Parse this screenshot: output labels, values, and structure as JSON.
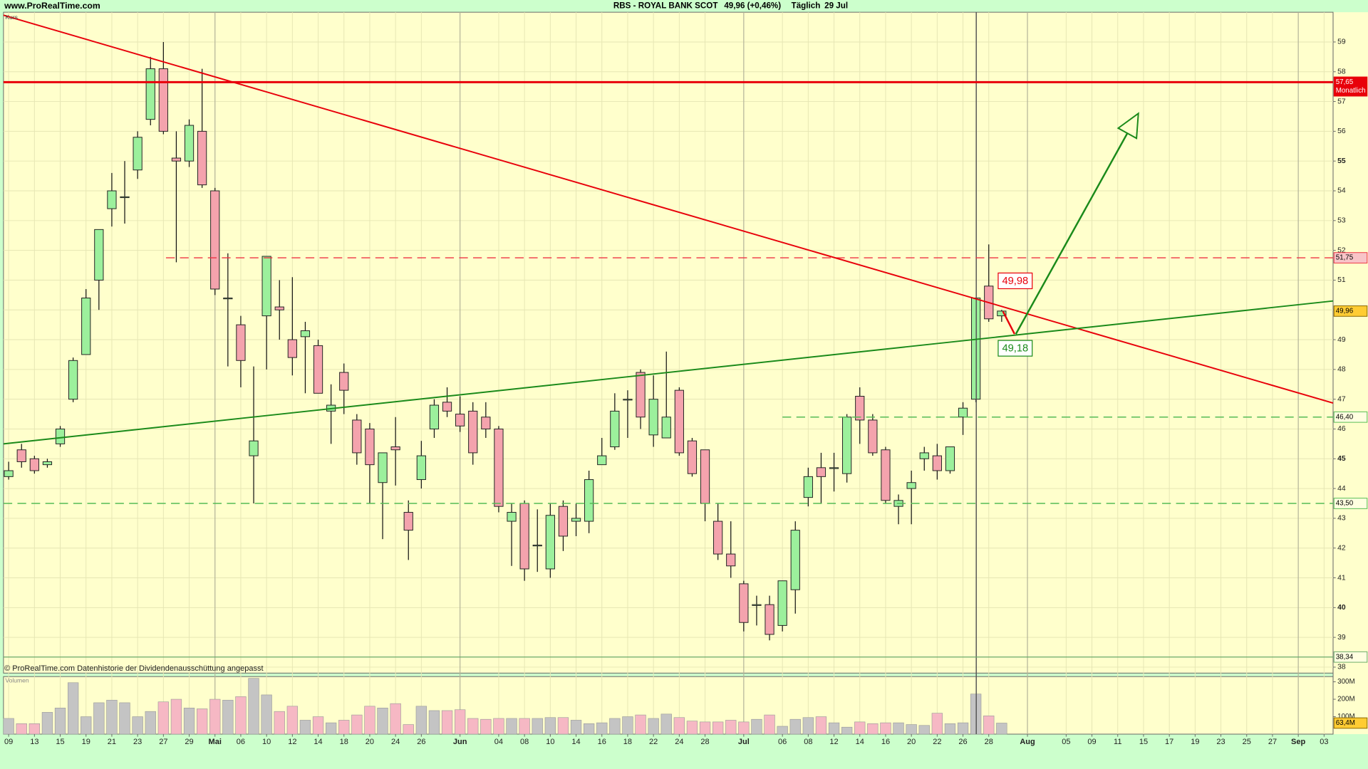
{
  "header": {
    "site": "www.ProRealTime.com",
    "title": "RBS - ROYAL BANK SCOT",
    "quote": "49,96 (+0,46%)",
    "period": "Täglich",
    "date": "29 Jul"
  },
  "chart_data": [
    {
      "type": "candlestick",
      "label": "Kurs",
      "footnote": "© ProRealTime.com  Datenhistorie der Dividendenausschüttung angepasst",
      "open": [
        44.4,
        45.3,
        45.0,
        44.8,
        45.5,
        47.0,
        48.5,
        51.0,
        53.4,
        53.8,
        54.7,
        56.4,
        58.1,
        55.1,
        55.0,
        56.0,
        54.0,
        50.4,
        49.5,
        45.1,
        49.8,
        50.1,
        49.0,
        49.1,
        48.8,
        46.6,
        47.9,
        46.3,
        46.0,
        44.2,
        45.4,
        43.2,
        44.3,
        46.0,
        46.9,
        46.5,
        46.6,
        46.4,
        46.0,
        42.9,
        43.5,
        42.1,
        41.3,
        43.4,
        42.9,
        42.9,
        44.8,
        45.4,
        47.0,
        47.9,
        45.8,
        45.7,
        47.3,
        45.6,
        45.3,
        42.9,
        41.8,
        40.8,
        40.1,
        40.1,
        39.4,
        40.6,
        43.7,
        44.7,
        44.7,
        44.5,
        47.1,
        46.3,
        45.3,
        43.4,
        44.0,
        45.0,
        45.1,
        44.6,
        46.4,
        47.0,
        50.8,
        49.8
      ],
      "high": [
        44.9,
        45.5,
        45.1,
        45.0,
        46.1,
        48.4,
        50.7,
        52.7,
        54.6,
        55.0,
        56.0,
        58.5,
        59.0,
        56.0,
        56.4,
        58.1,
        54.1,
        51.9,
        49.8,
        48.1,
        51.8,
        51.0,
        51.1,
        49.6,
        49.0,
        47.5,
        48.2,
        46.5,
        46.2,
        45.2,
        46.4,
        43.6,
        45.6,
        47.0,
        47.4,
        47.1,
        46.9,
        46.9,
        46.1,
        43.5,
        43.6,
        43.3,
        43.5,
        43.6,
        43.5,
        44.6,
        45.7,
        47.2,
        47.3,
        48.0,
        47.8,
        48.6,
        47.4,
        45.7,
        45.3,
        43.5,
        42.9,
        40.9,
        40.4,
        40.4,
        40.9,
        42.9,
        44.7,
        45.2,
        45.2,
        46.5,
        47.4,
        46.5,
        45.4,
        43.8,
        44.6,
        45.4,
        45.5,
        45.4,
        46.9,
        50.4,
        52.2,
        50.0
      ],
      "low": [
        44.3,
        44.7,
        44.5,
        44.7,
        45.4,
        46.9,
        48.5,
        50.0,
        52.8,
        52.9,
        54.4,
        56.2,
        55.9,
        51.6,
        54.8,
        54.1,
        50.5,
        48.1,
        47.4,
        43.5,
        48.0,
        49.0,
        47.8,
        47.2,
        47.2,
        45.5,
        46.5,
        44.8,
        43.5,
        42.3,
        44.1,
        41.6,
        44.0,
        45.7,
        46.4,
        45.9,
        44.8,
        45.7,
        43.2,
        41.4,
        40.9,
        41.2,
        41.0,
        41.9,
        42.4,
        42.5,
        44.8,
        45.3,
        45.7,
        46.0,
        45.4,
        45.7,
        45.1,
        44.4,
        42.9,
        41.6,
        41.0,
        39.2,
        39.4,
        38.9,
        39.2,
        39.8,
        43.4,
        43.5,
        43.9,
        44.2,
        45.5,
        45.1,
        43.5,
        42.8,
        42.8,
        44.6,
        44.3,
        44.5,
        45.8,
        46.9,
        49.6,
        49.6
      ],
      "close": [
        44.6,
        44.9,
        44.6,
        44.9,
        46.0,
        48.3,
        50.4,
        52.7,
        54.0,
        53.8,
        55.8,
        58.1,
        56.0,
        55.0,
        56.2,
        54.2,
        50.7,
        50.4,
        48.3,
        45.6,
        51.8,
        50.0,
        48.4,
        49.3,
        47.2,
        46.8,
        47.3,
        45.2,
        44.8,
        45.2,
        45.3,
        42.6,
        45.1,
        46.8,
        46.6,
        46.1,
        45.2,
        46.0,
        43.4,
        43.2,
        41.3,
        42.1,
        43.1,
        42.4,
        43.0,
        44.3,
        45.1,
        46.6,
        47.0,
        46.4,
        47.0,
        46.4,
        45.2,
        44.5,
        43.5,
        41.8,
        41.4,
        39.5,
        40.1,
        39.1,
        40.9,
        42.6,
        44.4,
        44.4,
        44.7,
        46.4,
        46.3,
        45.2,
        43.6,
        43.6,
        44.2,
        45.2,
        44.6,
        45.4,
        46.7,
        50.4,
        49.7,
        49.96
      ],
      "up_color": "#9cf09c",
      "down_color": "#f4a3ad",
      "ylim": [
        37.8,
        60
      ],
      "yticks": [
        38,
        39,
        40,
        41,
        42,
        43,
        44,
        45,
        46,
        47,
        48,
        49,
        50,
        51,
        52,
        53,
        54,
        55,
        56,
        57,
        58,
        59
      ],
      "grid": true,
      "last_price": {
        "value": 49.96,
        "label": "49,96",
        "box": "#ffcc33"
      },
      "levels": [
        {
          "value": 57.65,
          "label": "57,65",
          "note": "Monatlich",
          "color": "#e8000a",
          "style": "solid",
          "width": 2.5,
          "box": "#e8000a",
          "text_color": "#ffffff"
        },
        {
          "value": 51.75,
          "label": "51,75",
          "color": "#ee3344",
          "style": "dashed",
          "width": 1.2,
          "start": 12.2,
          "box": "#f8c4c8",
          "text_color": "#000000"
        },
        {
          "value": 46.4,
          "label": "46,40",
          "color": "#55bb55",
          "style": "dashed",
          "width": 1.2,
          "start": 60,
          "box": "#ffffe0",
          "text_color": "#000000"
        },
        {
          "value": 43.5,
          "label": "43,50",
          "color": "#55bb55",
          "style": "dashed",
          "width": 1.2,
          "box": "#ffffe0",
          "text_color": "#000000"
        },
        {
          "value": 38.34,
          "label": "38,34",
          "color": "#6aaa6a",
          "style": "solid",
          "width": 1,
          "box": "#ffffe0",
          "text_color": "#000000"
        }
      ],
      "trendlines": [
        {
          "color": "#e8000a",
          "points": [
            [
              -0.4,
              59.9
            ],
            [
              102.7,
              46.87
            ]
          ]
        },
        {
          "color": "#1a8a1a",
          "points": [
            [
              -0.4,
              45.5
            ],
            [
              102.7,
              50.3
            ]
          ]
        }
      ],
      "arrows": [
        {
          "color": "#1a8a1a",
          "points": [
            [
              78.1,
              49.19
            ],
            [
              87.6,
              56.6
            ]
          ],
          "head": "open"
        },
        {
          "color": "#e8000a",
          "points": [
            [
              77.1,
              49.95
            ],
            [
              78.0,
              49.19
            ]
          ],
          "head": "none"
        }
      ],
      "annotations": [
        {
          "label": "49,98",
          "value": 49.98,
          "x": 77,
          "side": "above",
          "color": "#e8000a"
        },
        {
          "label": "49,18",
          "value": 49.18,
          "x": 77,
          "side": "below",
          "color": "#1a8a1a"
        }
      ]
    },
    {
      "type": "volume",
      "label": "Volumen",
      "values": [
        90,
        60,
        60,
        125,
        150,
        295,
        100,
        180,
        195,
        180,
        100,
        130,
        185,
        200,
        150,
        145,
        200,
        195,
        215,
        320,
        225,
        130,
        160,
        80,
        100,
        65,
        80,
        110,
        160,
        150,
        175,
        55,
        160,
        135,
        135,
        140,
        90,
        85,
        90,
        90,
        90,
        90,
        95,
        95,
        80,
        60,
        65,
        90,
        100,
        110,
        90,
        115,
        95,
        75,
        70,
        70,
        80,
        70,
        85,
        110,
        45,
        85,
        95,
        100,
        65,
        40,
        70,
        60,
        65,
        65,
        55,
        50,
        120,
        60,
        65,
        230,
        105,
        63.4
      ],
      "up_color": "#c4c4c4",
      "down_color": "#f6b8c4",
      "ylim": [
        0,
        330
      ],
      "yticks": [
        {
          "value": 100,
          "label": "100M"
        },
        {
          "value": 200,
          "label": "200M"
        },
        {
          "value": 300,
          "label": "300M"
        }
      ],
      "last_value": {
        "value": 63.4,
        "label": "63,4M",
        "box": "#ffcc33"
      },
      "xlim": [
        -0.4,
        102.7
      ],
      "xticks": [
        {
          "value": 0,
          "label": "09"
        },
        {
          "value": 2,
          "label": "13"
        },
        {
          "value": 4,
          "label": "15"
        },
        {
          "value": 6,
          "label": "19"
        },
        {
          "value": 8,
          "label": "21"
        },
        {
          "value": 10,
          "label": "23"
        },
        {
          "value": 12,
          "label": "27"
        },
        {
          "value": 14,
          "label": "29"
        },
        {
          "value": 16,
          "label": "Mai"
        },
        {
          "value": 18,
          "label": "06"
        },
        {
          "value": 20,
          "label": "10"
        },
        {
          "value": 22,
          "label": "12"
        },
        {
          "value": 24,
          "label": "14"
        },
        {
          "value": 26,
          "label": "18"
        },
        {
          "value": 28,
          "label": "20"
        },
        {
          "value": 30,
          "label": "24"
        },
        {
          "value": 32,
          "label": "26"
        },
        {
          "value": 35,
          "label": "Jun"
        },
        {
          "value": 38,
          "label": "04"
        },
        {
          "value": 40,
          "label": "08"
        },
        {
          "value": 42,
          "label": "10"
        },
        {
          "value": 44,
          "label": "14"
        },
        {
          "value": 46,
          "label": "16"
        },
        {
          "value": 48,
          "label": "18"
        },
        {
          "value": 50,
          "label": "22"
        },
        {
          "value": 52,
          "label": "24"
        },
        {
          "value": 54,
          "label": "28"
        },
        {
          "value": 57,
          "label": "Jul"
        },
        {
          "value": 60,
          "label": "06"
        },
        {
          "value": 62,
          "label": "08"
        },
        {
          "value": 64,
          "label": "12"
        },
        {
          "value": 66,
          "label": "14"
        },
        {
          "value": 68,
          "label": "16"
        },
        {
          "value": 70,
          "label": "20"
        },
        {
          "value": 72,
          "label": "22"
        },
        {
          "value": 74,
          "label": "26"
        },
        {
          "value": 76,
          "label": "28"
        },
        {
          "value": 79,
          "label": "Aug"
        },
        {
          "value": 82,
          "label": "05"
        },
        {
          "value": 84,
          "label": "09"
        },
        {
          "value": 86,
          "label": "11"
        },
        {
          "value": 88,
          "label": "15"
        },
        {
          "value": 90,
          "label": "17"
        },
        {
          "value": 92,
          "label": "19"
        },
        {
          "value": 94,
          "label": "23"
        },
        {
          "value": 96,
          "label": "25"
        },
        {
          "value": 98,
          "label": "27"
        },
        {
          "value": 100,
          "label": "Sep"
        },
        {
          "value": 102,
          "label": "03"
        }
      ]
    }
  ]
}
